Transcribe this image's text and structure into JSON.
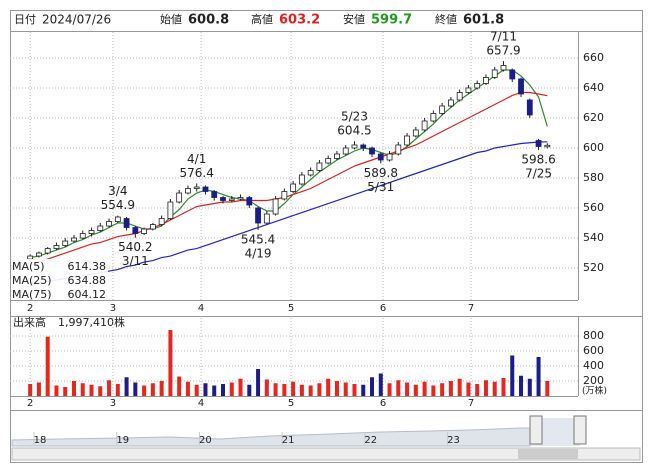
{
  "chart_data": {
    "type": "candlestick",
    "header": {
      "date_label": "日付",
      "date": "2024/07/26",
      "open_label": "始値",
      "high_label": "高値",
      "low_label": "安値",
      "close_label": "終値"
    },
    "x": [
      0,
      1,
      2,
      3,
      4,
      5,
      6,
      7,
      8,
      9,
      10,
      11,
      12,
      13,
      14,
      15,
      16,
      17,
      18,
      19,
      20,
      21,
      22,
      23,
      24,
      25,
      26,
      27,
      28,
      29,
      30,
      31,
      32,
      33,
      34,
      35,
      36,
      37,
      38,
      39,
      40,
      41,
      42,
      43,
      44,
      45,
      46,
      47,
      48,
      49,
      50,
      51,
      52,
      53,
      54,
      55,
      56,
      57,
      58,
      59
    ],
    "xlim": [
      -2.3,
      62.5
    ],
    "xticks": [
      {
        "value": 0,
        "label": "2"
      },
      {
        "value": 9.45,
        "label": "3"
      },
      {
        "value": 19.5,
        "label": "4"
      },
      {
        "value": 29.76,
        "label": "5"
      },
      {
        "value": 40.26,
        "label": "6"
      },
      {
        "value": 50.3,
        "label": "7"
      }
    ],
    "ylim": [
      498.7,
      677.3
    ],
    "yticks": [
      520,
      540,
      560,
      580,
      600,
      620,
      640,
      660
    ],
    "grid": true,
    "up_color": "#ffffff",
    "down_color": "#1c1c8a",
    "ohlc": [
      [
        526,
        529,
        524,
        528
      ],
      [
        528,
        531,
        527,
        530
      ],
      [
        530,
        534,
        529,
        533
      ],
      [
        533,
        537,
        532,
        535
      ],
      [
        535,
        540,
        534,
        538
      ],
      [
        538,
        542,
        537,
        540
      ],
      [
        540,
        545,
        539,
        543
      ],
      [
        543,
        547,
        541,
        545
      ],
      [
        545,
        550,
        544,
        548
      ],
      [
        548,
        553,
        547,
        551
      ],
      [
        551,
        554.9,
        550,
        554
      ],
      [
        553,
        554,
        545,
        547
      ],
      [
        547,
        548,
        540.2,
        543
      ],
      [
        543,
        547,
        542,
        546
      ],
      [
        546,
        550,
        545,
        549
      ],
      [
        549,
        555,
        548,
        553
      ],
      [
        553,
        566,
        552,
        564
      ],
      [
        564,
        572,
        563,
        570
      ],
      [
        570,
        575,
        569,
        573
      ],
      [
        573,
        576.4,
        571,
        574
      ],
      [
        574,
        575,
        569,
        571
      ],
      [
        571,
        572,
        565,
        567
      ],
      [
        567,
        568,
        563,
        565
      ],
      [
        565,
        568,
        564,
        566
      ],
      [
        566,
        569,
        565,
        567
      ],
      [
        567,
        568,
        560,
        562
      ],
      [
        560,
        561,
        545.4,
        550
      ],
      [
        550,
        558,
        549,
        556
      ],
      [
        556,
        568,
        555,
        566
      ],
      [
        566,
        573,
        565,
        571
      ],
      [
        571,
        578,
        570,
        576
      ],
      [
        576,
        584,
        575,
        582
      ],
      [
        582,
        587,
        581,
        585
      ],
      [
        585,
        592,
        584,
        590
      ],
      [
        590,
        595,
        589,
        593
      ],
      [
        593,
        598,
        592,
        596
      ],
      [
        596,
        602,
        595,
        600
      ],
      [
        600,
        604.5,
        599,
        602
      ],
      [
        602,
        603,
        598,
        600
      ],
      [
        600,
        601,
        594,
        596
      ],
      [
        596,
        597,
        589.8,
        592
      ],
      [
        592,
        598,
        591,
        596
      ],
      [
        596,
        604,
        595,
        602
      ],
      [
        602,
        610,
        601,
        608
      ],
      [
        608,
        614,
        607,
        612
      ],
      [
        612,
        620,
        611,
        618
      ],
      [
        618,
        625,
        617,
        623
      ],
      [
        623,
        630,
        622,
        628
      ],
      [
        628,
        634,
        627,
        632
      ],
      [
        632,
        639,
        631,
        637
      ],
      [
        637,
        642,
        636,
        640
      ],
      [
        640,
        645,
        639,
        643
      ],
      [
        643,
        649,
        642,
        647
      ],
      [
        647,
        654,
        646,
        652
      ],
      [
        652,
        657.9,
        651,
        655
      ],
      [
        652,
        653,
        644,
        646
      ],
      [
        646,
        647,
        634,
        636
      ],
      [
        632,
        633,
        620,
        622
      ],
      [
        605,
        606,
        598.6,
        601
      ],
      [
        600.8,
        603.2,
        599.7,
        601.8
      ]
    ],
    "peak_labels": [
      {
        "x": 10,
        "date": "3/4"
      },
      {
        "x": 19,
        "date": "4/1"
      },
      {
        "x": 37,
        "date": "5/23"
      },
      {
        "x": 54,
        "date": "7/11"
      }
    ],
    "trough_labels": [
      {
        "x": 12,
        "date": "3/11"
      },
      {
        "x": 26,
        "date": "4/19"
      },
      {
        "x": 40,
        "date": "5/31"
      },
      {
        "x": 58,
        "date": "7/25"
      }
    ],
    "ma": [
      {
        "name": "MA(5)",
        "color": "#2e8b2e",
        "values": [
          527,
          528,
          530,
          532,
          534,
          537,
          539,
          542,
          544,
          547,
          550,
          550,
          548,
          546,
          546,
          548,
          554,
          559,
          566,
          570,
          572,
          571,
          569,
          567,
          566,
          565,
          561,
          558,
          558,
          563,
          569,
          574,
          579,
          584,
          588,
          592,
          595,
          598,
          600,
          599,
          597,
          595,
          597,
          601,
          606,
          611,
          616,
          622,
          627,
          632,
          636,
          640,
          644,
          648,
          652,
          652,
          648,
          642,
          634,
          614.38
        ]
      },
      {
        "name": "MA(25)",
        "color": "#e02020",
        "values": [
          522,
          524,
          526,
          528,
          530,
          532,
          534,
          536,
          537,
          539,
          541,
          542,
          543,
          545,
          547,
          549,
          552,
          555,
          558,
          561,
          562,
          563,
          564,
          564,
          565,
          565,
          565,
          565,
          566,
          567,
          569,
          571,
          573,
          576,
          579,
          582,
          585,
          588,
          590,
          592,
          594,
          596,
          598,
          600,
          602,
          605,
          608,
          611,
          614,
          617,
          620,
          623,
          626,
          629,
          632,
          635,
          637,
          637,
          636,
          634.88
        ]
      },
      {
        "name": "MA(75)",
        "color": "#2323d0",
        "values": [
          509,
          510,
          511,
          512,
          513,
          514,
          515,
          516,
          517,
          518,
          519,
          521,
          522,
          524,
          525,
          527,
          528,
          530,
          532,
          533,
          535,
          537,
          539,
          541,
          543,
          545,
          547,
          549,
          551,
          553,
          555,
          557,
          559,
          561,
          563,
          565,
          567,
          569,
          571,
          573,
          575,
          577,
          579,
          581,
          583,
          585,
          587,
          589,
          591,
          593,
          595,
          597,
          598,
          600,
          601,
          602,
          603,
          603.5,
          604,
          604.12
        ]
      }
    ],
    "volume": {
      "title": "出来高",
      "last": {
        "value": 1997410,
        "label": "1,997,410株"
      },
      "unit": "(万株)",
      "up_color": "#e8251e",
      "down_color": "#1c1c8a",
      "ylim": [
        0,
        1040
      ],
      "yticks": [
        200,
        400,
        600,
        800
      ],
      "values": [
        160,
        180,
        790,
        140,
        120,
        200,
        170,
        150,
        130,
        210,
        160,
        250,
        180,
        140,
        170,
        200,
        880,
        260,
        190,
        150,
        170,
        140,
        160,
        180,
        230,
        150,
        360,
        220,
        170,
        160,
        190,
        150,
        140,
        170,
        230,
        200,
        180,
        160,
        150,
        250,
        300,
        170,
        210,
        180,
        150,
        190,
        140,
        170,
        200,
        230,
        180,
        160,
        210,
        190,
        240,
        540,
        270,
        230,
        520,
        199.741
      ]
    },
    "navigator": {
      "labels": [
        "18",
        "19",
        "20",
        "21",
        "22",
        "23"
      ]
    }
  }
}
